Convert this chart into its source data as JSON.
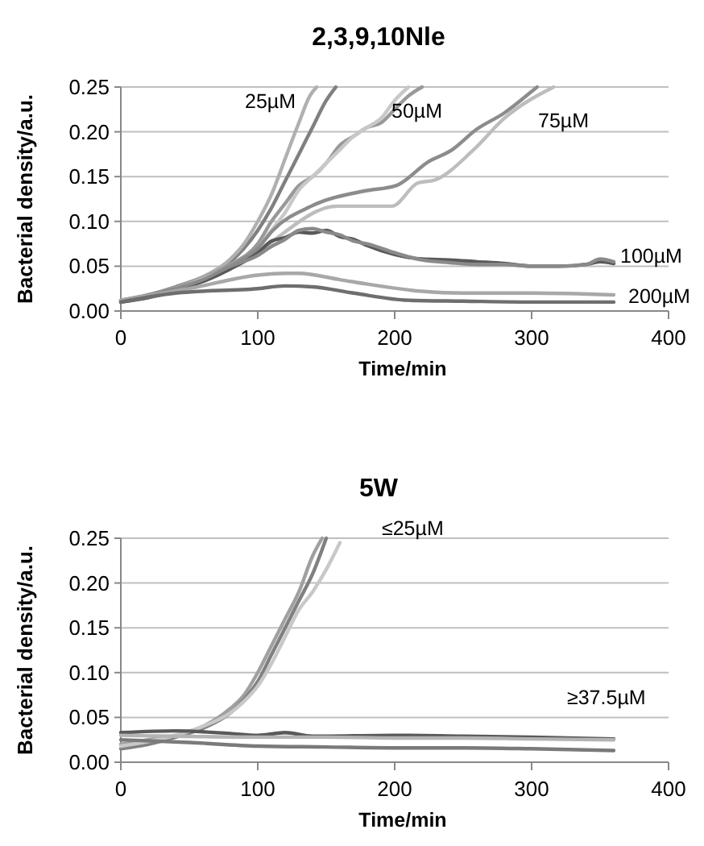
{
  "chart_data": [
    {
      "type": "line",
      "title": "2,3,9,10Nle",
      "xlabel": "Time/min",
      "ylabel": "Bacterial density/a.u.",
      "xlim": [
        0,
        400
      ],
      "xticks": [
        0,
        100,
        200,
        300,
        400
      ],
      "ylim": [
        0,
        0.25
      ],
      "yticks": [
        {
          "value": 0,
          "label": "0.00"
        },
        {
          "value": 0.05,
          "label": "0.05"
        },
        {
          "value": 0.1,
          "label": "0.10"
        },
        {
          "value": 0.15,
          "label": "0.15"
        },
        {
          "value": 0.2,
          "label": "0.20"
        },
        {
          "value": 0.25,
          "label": "0.25"
        }
      ],
      "grid": "y",
      "marker": "none",
      "line_style": "solid",
      "annotations": [
        "25µM",
        "50µM",
        "75µM",
        "100µM",
        "200µM"
      ],
      "series": [
        {
          "color": "#808080",
          "x": [
            0,
            20,
            40,
            60,
            80,
            90,
            100,
            110,
            120,
            130,
            140,
            150,
            157
          ],
          "values": [
            0.012,
            0.018,
            0.027,
            0.038,
            0.055,
            0.07,
            0.09,
            0.115,
            0.145,
            0.175,
            0.205,
            0.235,
            0.25
          ]
        },
        {
          "color": "#b0b0b0",
          "x": [
            0,
            20,
            40,
            60,
            80,
            90,
            100,
            110,
            120,
            130,
            138,
            143
          ],
          "values": [
            0.01,
            0.017,
            0.026,
            0.038,
            0.058,
            0.075,
            0.1,
            0.13,
            0.17,
            0.21,
            0.24,
            0.25
          ]
        },
        {
          "color": "#999999",
          "x": [
            0,
            20,
            40,
            60,
            80,
            100,
            110,
            120,
            130,
            140,
            150,
            160,
            170,
            180,
            190,
            200,
            210,
            220
          ],
          "values": [
            0.012,
            0.017,
            0.026,
            0.037,
            0.052,
            0.075,
            0.1,
            0.12,
            0.14,
            0.15,
            0.165,
            0.185,
            0.195,
            0.205,
            0.21,
            0.225,
            0.24,
            0.25
          ]
        },
        {
          "color": "#c8c8c8",
          "x": [
            0,
            20,
            40,
            60,
            80,
            100,
            110,
            120,
            130,
            140,
            150,
            160,
            170,
            180,
            190,
            200,
            210
          ],
          "values": [
            0.01,
            0.016,
            0.025,
            0.036,
            0.05,
            0.07,
            0.09,
            0.11,
            0.135,
            0.15,
            0.165,
            0.18,
            0.195,
            0.205,
            0.215,
            0.235,
            0.25
          ]
        },
        {
          "color": "#8c8c8c",
          "x": [
            0,
            20,
            40,
            60,
            80,
            100,
            111,
            139,
            178,
            201,
            225,
            241,
            260,
            280,
            300,
            304
          ],
          "values": [
            0.011,
            0.016,
            0.024,
            0.034,
            0.05,
            0.07,
            0.09,
            0.117,
            0.134,
            0.14,
            0.167,
            0.179,
            0.203,
            0.221,
            0.245,
            0.25
          ]
        },
        {
          "color": "#bdbdbd",
          "x": [
            0,
            20,
            40,
            60,
            80,
            100,
            111,
            158,
            198,
            217,
            229,
            257,
            280,
            316
          ],
          "values": [
            0.01,
            0.015,
            0.023,
            0.033,
            0.047,
            0.065,
            0.078,
            0.117,
            0.117,
            0.143,
            0.146,
            0.179,
            0.215,
            0.25
          ]
        },
        {
          "color": "#595959",
          "x": [
            0,
            20,
            40,
            60,
            80,
            100,
            110,
            120,
            130,
            140,
            150,
            160,
            170,
            180,
            200,
            220,
            240,
            260,
            280,
            300,
            320,
            340,
            350,
            360
          ],
          "values": [
            0.01,
            0.015,
            0.023,
            0.033,
            0.047,
            0.065,
            0.078,
            0.082,
            0.088,
            0.087,
            0.09,
            0.083,
            0.08,
            0.073,
            0.063,
            0.058,
            0.057,
            0.055,
            0.053,
            0.05,
            0.05,
            0.052,
            0.055,
            0.053
          ]
        },
        {
          "color": "#8a8a8a",
          "x": [
            0,
            20,
            40,
            60,
            80,
            100,
            110,
            120,
            130,
            140,
            150,
            160,
            170,
            180,
            200,
            220,
            240,
            260,
            280,
            300,
            320,
            340,
            350,
            360
          ],
          "values": [
            0.012,
            0.017,
            0.025,
            0.035,
            0.05,
            0.062,
            0.072,
            0.08,
            0.09,
            0.092,
            0.088,
            0.085,
            0.078,
            0.075,
            0.065,
            0.057,
            0.054,
            0.052,
            0.052,
            0.05,
            0.05,
            0.052,
            0.058,
            0.055
          ]
        },
        {
          "color": "#a8a8a8",
          "x": [
            0,
            50,
            100,
            120,
            130,
            160,
            180,
            220,
            250,
            300,
            360
          ],
          "values": [
            0.012,
            0.025,
            0.04,
            0.042,
            0.042,
            0.035,
            0.03,
            0.022,
            0.02,
            0.02,
            0.018
          ]
        },
        {
          "color": "#6e6e6e",
          "x": [
            0,
            40,
            100,
            120,
            140,
            170,
            210,
            250,
            300,
            360
          ],
          "values": [
            0.01,
            0.02,
            0.025,
            0.028,
            0.027,
            0.02,
            0.012,
            0.011,
            0.01,
            0.01
          ]
        }
      ]
    },
    {
      "type": "line",
      "title": "5W",
      "xlabel": "Time/min",
      "ylabel": "Bacterial density/a.u.",
      "xlim": [
        0,
        400
      ],
      "xticks": [
        0,
        100,
        200,
        300,
        400
      ],
      "ylim": [
        0,
        0.25
      ],
      "yticks": [
        {
          "value": 0,
          "label": "0.00"
        },
        {
          "value": 0.05,
          "label": "0.05"
        },
        {
          "value": 0.1,
          "label": "0.10"
        },
        {
          "value": 0.15,
          "label": "0.15"
        },
        {
          "value": 0.2,
          "label": "0.20"
        },
        {
          "value": 0.25,
          "label": "0.25"
        }
      ],
      "grid": "y",
      "marker": "none",
      "line_style": "solid",
      "annotations": [
        "≤25µM",
        "≥37.5µM"
      ],
      "series": [
        {
          "color": "#a0a0a0",
          "x": [
            0,
            20,
            40,
            60,
            80,
            90,
            100,
            110,
            120,
            130,
            140,
            147
          ],
          "values": [
            0.02,
            0.025,
            0.03,
            0.04,
            0.06,
            0.075,
            0.1,
            0.13,
            0.16,
            0.19,
            0.23,
            0.25
          ]
        },
        {
          "color": "#808080",
          "x": [
            0,
            20,
            40,
            60,
            80,
            90,
            100,
            110,
            120,
            130,
            140,
            150
          ],
          "values": [
            0.015,
            0.02,
            0.028,
            0.038,
            0.055,
            0.07,
            0.09,
            0.12,
            0.15,
            0.18,
            0.21,
            0.25
          ]
        },
        {
          "color": "#c8c8c8",
          "x": [
            0,
            20,
            40,
            60,
            80,
            90,
            100,
            110,
            120,
            130,
            140,
            150,
            160
          ],
          "values": [
            0.018,
            0.023,
            0.03,
            0.04,
            0.055,
            0.068,
            0.085,
            0.11,
            0.14,
            0.17,
            0.19,
            0.215,
            0.245
          ]
        },
        {
          "color": "#595959",
          "x": [
            0,
            40,
            80,
            100,
            120,
            140,
            200,
            250,
            300,
            360
          ],
          "values": [
            0.033,
            0.035,
            0.032,
            0.03,
            0.033,
            0.029,
            0.03,
            0.029,
            0.028,
            0.026
          ]
        },
        {
          "color": "#b4b4b4",
          "x": [
            0,
            40,
            100,
            150,
            200,
            250,
            300,
            360
          ],
          "values": [
            0.03,
            0.029,
            0.028,
            0.028,
            0.027,
            0.027,
            0.026,
            0.025
          ]
        },
        {
          "color": "#7a7a7a",
          "x": [
            0,
            50,
            100,
            150,
            200,
            250,
            300,
            360
          ],
          "values": [
            0.025,
            0.022,
            0.018,
            0.017,
            0.016,
            0.016,
            0.015,
            0.013
          ]
        }
      ]
    }
  ]
}
